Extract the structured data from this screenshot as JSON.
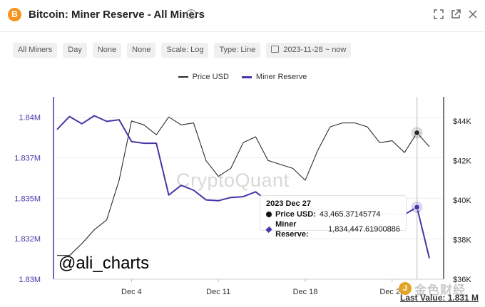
{
  "header": {
    "title": "Bitcoin: Miner Reserve - All Miners",
    "logo_glyph": "B",
    "info_glyph": "i",
    "icons": [
      "expand-icon",
      "open-external-icon",
      "close-icon"
    ]
  },
  "filters": [
    {
      "label": "All Miners"
    },
    {
      "label": "Day"
    },
    {
      "label": "None"
    },
    {
      "label": "None"
    },
    {
      "label": "Scale: Log"
    },
    {
      "label": "Type: Line"
    },
    {
      "label": "2023-11-28 ~ now"
    }
  ],
  "tooltip": {
    "date": "2023 Dec 27",
    "price_label": "Price USD:",
    "price_value": "43,465.37145774",
    "reserve_label": "Miner Reserve:",
    "reserve_value": "1,834,447.61900886"
  },
  "overlay": {
    "handle": "@ali_charts",
    "watermark": "CryptoQuant",
    "last_value": "Last Value: 1.831 M",
    "jinse_text": "金色财经"
  },
  "colors": {
    "price": "#2b2b2b",
    "reserve": "#4b33a8",
    "grid": "#eeeeee"
  },
  "chart_data": {
    "type": "line",
    "x_ticks": [
      "Dec 4",
      "Dec 11",
      "Dec 18",
      "Dec 25"
    ],
    "y_left_ticks": [
      "1.84M",
      "1.837M",
      "1.835M",
      "1.832M",
      "1.83M"
    ],
    "y_left_tick_values": [
      1840000,
      1837500,
      1835000,
      1832500,
      1830000
    ],
    "y_right_ticks": [
      "$44K",
      "$42K",
      "$40K",
      "$38K",
      "$36K"
    ],
    "y_right_tick_values": [
      44000,
      42000,
      40000,
      38000,
      36000
    ],
    "ylim_left": [
      1830000,
      1841000
    ],
    "ylim_right": [
      36000,
      45000
    ],
    "x_start": "2023-11-28",
    "x_end": "2023-12-28",
    "legend": [
      "Price USD",
      "Miner Reserve"
    ],
    "series": [
      {
        "name": "Price USD",
        "axis": "right",
        "x": [
          "2023-11-28",
          "2023-11-29",
          "2023-11-30",
          "2023-12-01",
          "2023-12-02",
          "2023-12-03",
          "2023-12-04",
          "2023-12-05",
          "2023-12-06",
          "2023-12-07",
          "2023-12-08",
          "2023-12-09",
          "2023-12-10",
          "2023-12-11",
          "2023-12-12",
          "2023-12-13",
          "2023-12-14",
          "2023-12-15",
          "2023-12-16",
          "2023-12-17",
          "2023-12-18",
          "2023-12-19",
          "2023-12-20",
          "2023-12-21",
          "2023-12-22",
          "2023-12-23",
          "2023-12-24",
          "2023-12-25",
          "2023-12-26",
          "2023-12-27",
          "2023-12-28"
        ],
        "values": [
          37200,
          37200,
          37800,
          38500,
          39000,
          41000,
          44000,
          43800,
          43300,
          44200,
          43800,
          43900,
          42000,
          41200,
          41600,
          42900,
          43200,
          42000,
          41800,
          41600,
          41000,
          42500,
          43700,
          43900,
          43900,
          43700,
          42900,
          43000,
          42400,
          43400,
          42700
        ]
      },
      {
        "name": "Miner Reserve",
        "axis": "left",
        "x": [
          "2023-11-28",
          "2023-11-29",
          "2023-11-30",
          "2023-12-01",
          "2023-12-02",
          "2023-12-03",
          "2023-12-04",
          "2023-12-05",
          "2023-12-06",
          "2023-12-07",
          "2023-12-08",
          "2023-12-09",
          "2023-12-10",
          "2023-12-11",
          "2023-12-12",
          "2023-12-13",
          "2023-12-14",
          "2023-12-15",
          "2023-12-16",
          "2023-12-17",
          "2023-12-18",
          "2023-12-19",
          "2023-12-20",
          "2023-12-21",
          "2023-12-22",
          "2023-12-23",
          "2023-12-24",
          "2023-12-25",
          "2023-12-26",
          "2023-12-27",
          "2023-12-28"
        ],
        "values": [
          1839250,
          1840050,
          1839600,
          1840100,
          1839750,
          1839850,
          1838500,
          1838400,
          1838400,
          1835200,
          1835800,
          1835500,
          1834900,
          1834850,
          1835050,
          1835100,
          1835400,
          1834800,
          1834600,
          1834500,
          1834400,
          1834300,
          1834250,
          1834200,
          1834150,
          1834100,
          1834050,
          1834000,
          1834000,
          1834447,
          1831300
        ]
      }
    ],
    "highlight_x": "2023-12-27",
    "grid": "horizontal",
    "legend_position": "top-center"
  }
}
